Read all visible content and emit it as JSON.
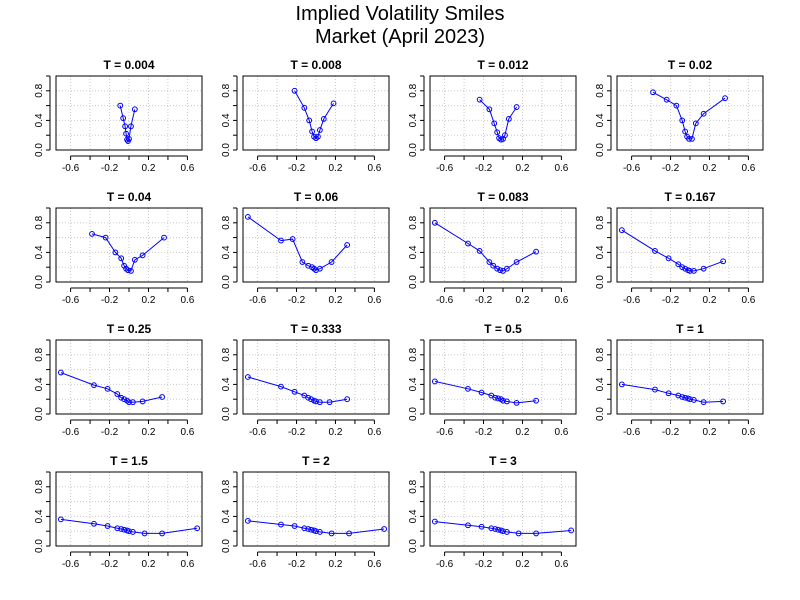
{
  "title": "Implied Volatility Smiles",
  "subtitle": "Market (April 2023)",
  "colors": {
    "series": "#0000ff",
    "frame": "#000000",
    "grid": "#c8c8c8"
  },
  "chart_data": [
    {
      "type": "line",
      "title": "T = 0.004",
      "xlim": [
        -0.75,
        0.75
      ],
      "ylim": [
        0,
        1
      ],
      "grid": true,
      "x": [
        -0.09,
        -0.06,
        -0.04,
        -0.03,
        -0.02,
        -0.01,
        0.0,
        0.02,
        0.06
      ],
      "y": [
        0.6,
        0.43,
        0.32,
        0.22,
        0.14,
        0.12,
        0.15,
        0.32,
        0.55
      ]
    },
    {
      "type": "line",
      "title": "T = 0.008",
      "xlim": [
        -0.75,
        0.75
      ],
      "ylim": [
        0,
        1
      ],
      "grid": true,
      "x": [
        -0.22,
        -0.12,
        -0.07,
        -0.04,
        -0.02,
        0.0,
        0.02,
        0.04,
        0.08,
        0.18
      ],
      "y": [
        0.8,
        0.57,
        0.4,
        0.25,
        0.18,
        0.16,
        0.18,
        0.27,
        0.42,
        0.63
      ]
    },
    {
      "type": "line",
      "title": "T = 0.012",
      "xlim": [
        -0.75,
        0.75
      ],
      "ylim": [
        0,
        1
      ],
      "grid": true,
      "x": [
        -0.24,
        -0.14,
        -0.09,
        -0.06,
        -0.04,
        -0.02,
        0.0,
        0.02,
        0.06,
        0.14
      ],
      "y": [
        0.68,
        0.55,
        0.36,
        0.24,
        0.16,
        0.14,
        0.15,
        0.2,
        0.42,
        0.58
      ]
    },
    {
      "type": "line",
      "title": "T = 0.02",
      "xlim": [
        -0.75,
        0.75
      ],
      "ylim": [
        0,
        1
      ],
      "grid": true,
      "x": [
        -0.38,
        -0.24,
        -0.14,
        -0.08,
        -0.05,
        -0.03,
        -0.01,
        0.02,
        0.06,
        0.14,
        0.36
      ],
      "y": [
        0.78,
        0.68,
        0.6,
        0.4,
        0.25,
        0.18,
        0.15,
        0.15,
        0.36,
        0.49,
        0.7
      ]
    },
    {
      "type": "line",
      "title": "T = 0.04",
      "xlim": [
        -0.75,
        0.75
      ],
      "ylim": [
        0,
        1
      ],
      "grid": true,
      "x": [
        -0.38,
        -0.24,
        -0.14,
        -0.08,
        -0.05,
        -0.03,
        -0.01,
        0.02,
        0.06,
        0.14,
        0.36
      ],
      "y": [
        0.65,
        0.6,
        0.4,
        0.32,
        0.22,
        0.18,
        0.16,
        0.15,
        0.3,
        0.36,
        0.6
      ]
    },
    {
      "type": "line",
      "title": "T = 0.06",
      "xlim": [
        -0.75,
        0.75
      ],
      "ylim": [
        0,
        1
      ],
      "grid": true,
      "x": [
        -0.7,
        -0.36,
        -0.24,
        -0.14,
        -0.08,
        -0.04,
        -0.02,
        0.0,
        0.04,
        0.16,
        0.32
      ],
      "y": [
        0.88,
        0.56,
        0.58,
        0.27,
        0.22,
        0.2,
        0.18,
        0.16,
        0.18,
        0.27,
        0.5
      ]
    },
    {
      "type": "line",
      "title": "T = 0.083",
      "xlim": [
        -0.75,
        0.75
      ],
      "ylim": [
        0,
        1
      ],
      "grid": true,
      "x": [
        -0.7,
        -0.36,
        -0.24,
        -0.14,
        -0.1,
        -0.06,
        -0.03,
        0.0,
        0.04,
        0.14,
        0.34
      ],
      "y": [
        0.8,
        0.52,
        0.42,
        0.27,
        0.22,
        0.18,
        0.16,
        0.15,
        0.18,
        0.27,
        0.41
      ]
    },
    {
      "type": "line",
      "title": "T = 0.167",
      "xlim": [
        -0.75,
        0.75
      ],
      "ylim": [
        0,
        1
      ],
      "grid": true,
      "x": [
        -0.7,
        -0.36,
        -0.22,
        -0.12,
        -0.08,
        -0.05,
        -0.02,
        0.0,
        0.04,
        0.14,
        0.34
      ],
      "y": [
        0.7,
        0.42,
        0.32,
        0.24,
        0.2,
        0.18,
        0.16,
        0.15,
        0.15,
        0.18,
        0.28
      ]
    },
    {
      "type": "line",
      "title": "T = 0.25",
      "xlim": [
        -0.75,
        0.75
      ],
      "ylim": [
        0,
        1
      ],
      "grid": true,
      "x": [
        -0.7,
        -0.36,
        -0.22,
        -0.12,
        -0.08,
        -0.05,
        -0.02,
        0.0,
        0.04,
        0.14,
        0.34
      ],
      "y": [
        0.56,
        0.39,
        0.34,
        0.27,
        0.22,
        0.2,
        0.18,
        0.16,
        0.16,
        0.17,
        0.23
      ]
    },
    {
      "type": "line",
      "title": "T = 0.333",
      "xlim": [
        -0.75,
        0.75
      ],
      "ylim": [
        0,
        1
      ],
      "grid": true,
      "x": [
        -0.7,
        -0.36,
        -0.22,
        -0.12,
        -0.08,
        -0.05,
        -0.02,
        0.0,
        0.04,
        0.14,
        0.32
      ],
      "y": [
        0.5,
        0.37,
        0.3,
        0.25,
        0.22,
        0.2,
        0.18,
        0.17,
        0.16,
        0.16,
        0.2
      ]
    },
    {
      "type": "line",
      "title": "T = 0.5",
      "xlim": [
        -0.75,
        0.75
      ],
      "ylim": [
        0,
        1
      ],
      "grid": true,
      "x": [
        -0.7,
        -0.36,
        -0.22,
        -0.12,
        -0.08,
        -0.05,
        -0.02,
        0.0,
        0.04,
        0.14,
        0.34
      ],
      "y": [
        0.44,
        0.34,
        0.29,
        0.25,
        0.22,
        0.21,
        0.2,
        0.18,
        0.17,
        0.15,
        0.18
      ]
    },
    {
      "type": "line",
      "title": "T = 1",
      "xlim": [
        -0.75,
        0.75
      ],
      "ylim": [
        0,
        1
      ],
      "grid": true,
      "x": [
        -0.7,
        -0.36,
        -0.22,
        -0.12,
        -0.08,
        -0.05,
        -0.02,
        0.0,
        0.04,
        0.14,
        0.34
      ],
      "y": [
        0.4,
        0.33,
        0.28,
        0.25,
        0.23,
        0.22,
        0.21,
        0.2,
        0.19,
        0.16,
        0.17
      ]
    },
    {
      "type": "line",
      "title": "T = 1.5",
      "xlim": [
        -0.75,
        0.75
      ],
      "ylim": [
        0,
        1
      ],
      "grid": true,
      "x": [
        -0.7,
        -0.36,
        -0.22,
        -0.12,
        -0.08,
        -0.05,
        -0.02,
        0.0,
        0.04,
        0.16,
        0.34,
        0.7
      ],
      "y": [
        0.36,
        0.3,
        0.27,
        0.24,
        0.23,
        0.22,
        0.21,
        0.2,
        0.19,
        0.17,
        0.17,
        0.24
      ]
    },
    {
      "type": "line",
      "title": "T = 2",
      "xlim": [
        -0.75,
        0.75
      ],
      "ylim": [
        0,
        1
      ],
      "grid": true,
      "x": [
        -0.7,
        -0.36,
        -0.22,
        -0.12,
        -0.08,
        -0.05,
        -0.02,
        0.0,
        0.04,
        0.16,
        0.34,
        0.7
      ],
      "y": [
        0.34,
        0.29,
        0.27,
        0.24,
        0.23,
        0.22,
        0.21,
        0.2,
        0.19,
        0.17,
        0.17,
        0.23
      ]
    },
    {
      "type": "line",
      "title": "T = 3",
      "xlim": [
        -0.75,
        0.75
      ],
      "ylim": [
        0,
        1
      ],
      "grid": true,
      "x": [
        -0.7,
        -0.36,
        -0.22,
        -0.12,
        -0.08,
        -0.05,
        -0.02,
        0.0,
        0.04,
        0.16,
        0.34,
        0.7
      ],
      "y": [
        0.33,
        0.28,
        0.26,
        0.24,
        0.23,
        0.22,
        0.21,
        0.2,
        0.19,
        0.17,
        0.17,
        0.21
      ]
    }
  ],
  "axes": {
    "x_ticks": [
      -0.6,
      -0.2,
      0.2,
      0.6
    ],
    "x_tick_labels": [
      "-0.6",
      "-0.2",
      "0.2",
      "0.6"
    ],
    "y_ticks": [
      0.0,
      0.4,
      0.8
    ],
    "y_tick_labels": [
      "0.0",
      "0.4",
      "0.8"
    ],
    "x_minor_ticks": [
      -0.6,
      -0.4,
      -0.2,
      0.0,
      0.2,
      0.4,
      0.6
    ],
    "y_minor_ticks": [
      0.0,
      0.2,
      0.4,
      0.6,
      0.8,
      1.0
    ]
  }
}
